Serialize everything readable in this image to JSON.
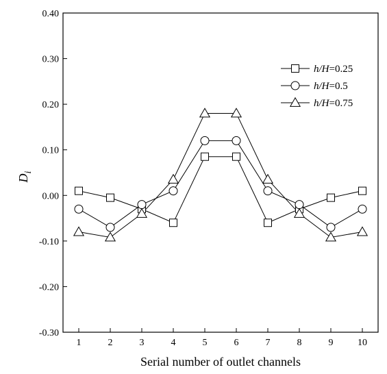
{
  "chart_data": {
    "type": "line",
    "title": "",
    "xlabel": "Serial number of outlet channels",
    "ylabel_main": "D",
    "ylabel_sub": "i",
    "x": [
      1,
      2,
      3,
      4,
      5,
      6,
      7,
      8,
      9,
      10
    ],
    "x_tick_labels": [
      "1",
      "2",
      "3",
      "4",
      "5",
      "6",
      "7",
      "8",
      "9",
      "10"
    ],
    "xlim": [
      0.5,
      10.5
    ],
    "ylim": [
      -0.3,
      0.4
    ],
    "y_ticks": [
      -0.3,
      -0.2,
      -0.1,
      0.0,
      0.1,
      0.2,
      0.3,
      0.4
    ],
    "y_tick_labels": [
      "-0.30",
      "-0.20",
      "-0.10",
      "0.00",
      "0.10",
      "0.20",
      "0.30",
      "0.40"
    ],
    "grid": false,
    "legend_position": "top-right",
    "series": [
      {
        "name_italic": "h/H",
        "name_suffix": "=0.25",
        "marker": "square",
        "values": [
          0.01,
          -0.005,
          -0.03,
          -0.06,
          0.085,
          0.085,
          -0.06,
          -0.03,
          -0.005,
          0.01
        ]
      },
      {
        "name_italic": "h/H",
        "name_suffix": "=0.5",
        "marker": "circle",
        "values": [
          -0.03,
          -0.07,
          -0.02,
          0.01,
          0.12,
          0.12,
          0.01,
          -0.02,
          -0.07,
          -0.03
        ]
      },
      {
        "name_italic": "h/H",
        "name_suffix": "=0.75",
        "marker": "triangle",
        "values": [
          -0.08,
          -0.092,
          -0.04,
          0.035,
          0.18,
          0.18,
          0.035,
          -0.04,
          -0.092,
          -0.08
        ]
      }
    ]
  }
}
